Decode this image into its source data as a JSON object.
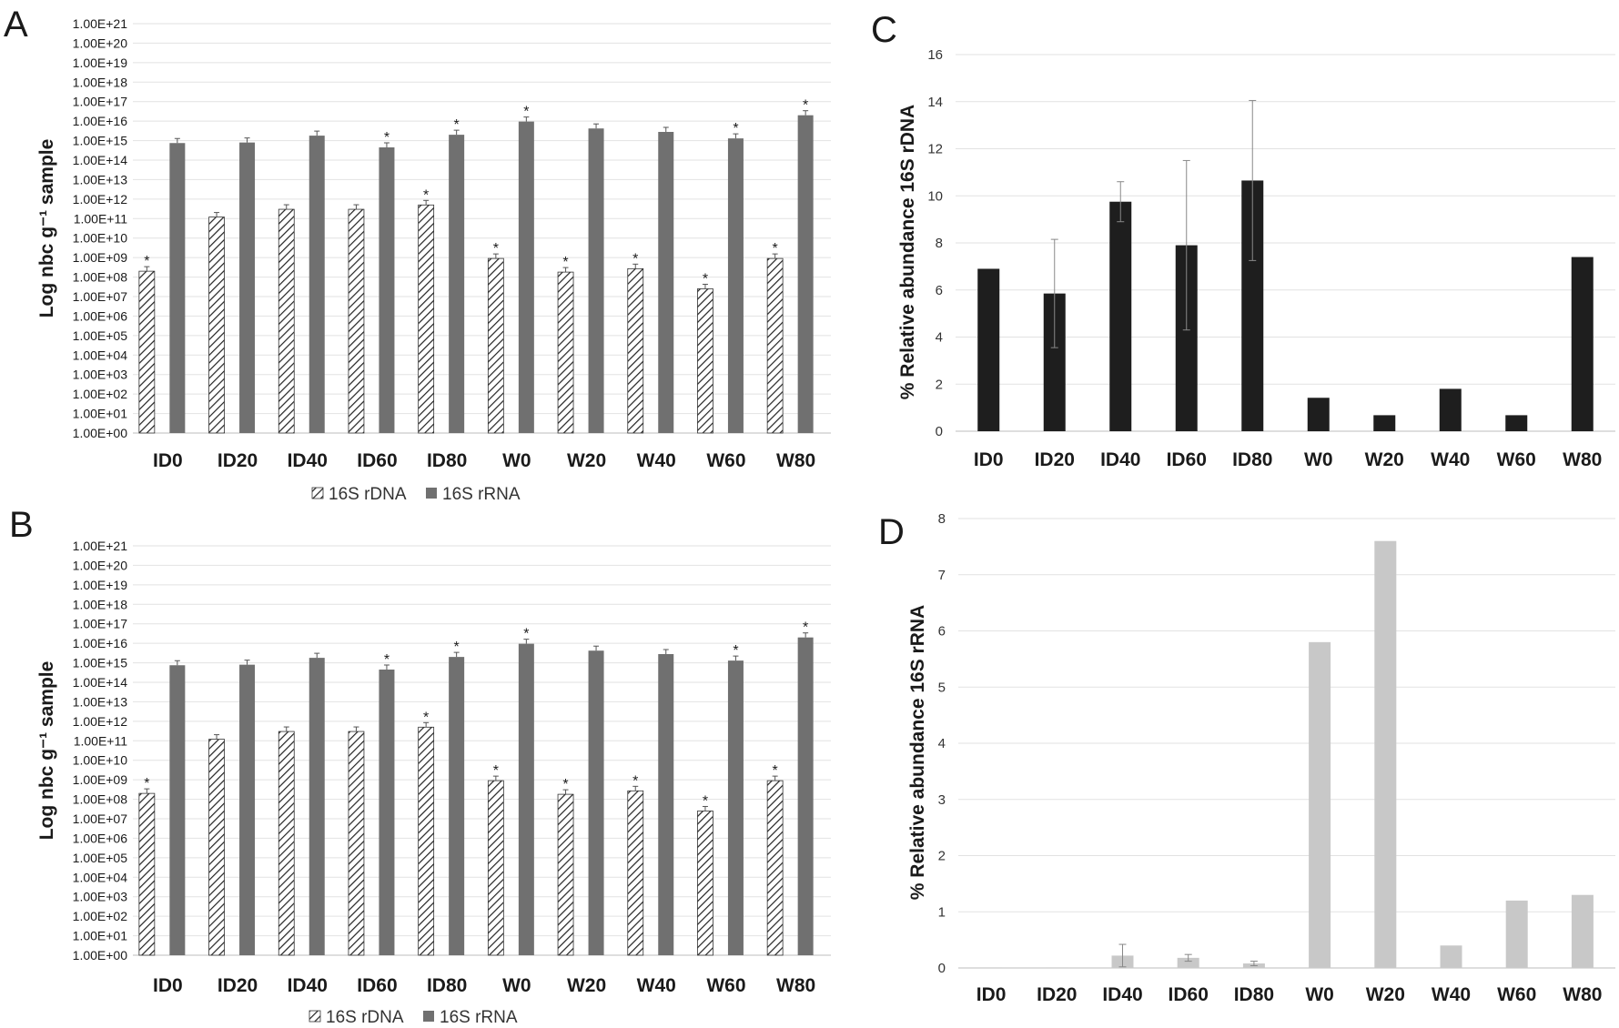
{
  "chart_data": [
    {
      "panel": "A",
      "type": "bar",
      "scale": "log",
      "ylabel": "Log nbc g⁻¹ sample",
      "ylim": [
        1,
        1e+21
      ],
      "ytick_labels": [
        "1.00E+00",
        "1.00E+01",
        "1.00E+02",
        "1.00E+03",
        "1.00E+04",
        "1.00E+05",
        "1.00E+06",
        "1.00E+07",
        "1.00E+08",
        "1.00E+09",
        "1.00E+10",
        "1.00E+11",
        "1.00E+12",
        "1.00E+13",
        "1.00E+14",
        "1.00E+15",
        "1.00E+16",
        "1.00E+17",
        "1.00E+18",
        "1.00E+19",
        "1.00E+20",
        "1.00E+21"
      ],
      "categories": [
        "ID0",
        "ID20",
        "ID40",
        "ID60",
        "ID80",
        "W0",
        "W20",
        "W40",
        "W60",
        "W80"
      ],
      "series": [
        {
          "name": "16S rDNA",
          "pattern": "hatched",
          "values": [
            200000000.0,
            120000000000.0,
            300000000000.0,
            300000000000.0,
            500000000000.0,
            900000000.0,
            180000000.0,
            270000000.0,
            25000000.0,
            900000000.0
          ],
          "star": [
            true,
            false,
            false,
            false,
            true,
            true,
            true,
            true,
            true,
            true
          ]
        },
        {
          "name": "16S rRNA",
          "pattern": "solid",
          "color": "#707070",
          "values": [
            750000000000000.0,
            800000000000000.0,
            1800000000000000.0,
            450000000000000.0,
            2000000000000000.0,
            9500000000000000.0,
            4200000000000000.0,
            2800000000000000.0,
            1300000000000000.0,
            2e+16
          ],
          "star": [
            false,
            false,
            false,
            true,
            true,
            true,
            false,
            false,
            true,
            true
          ]
        }
      ],
      "legend_position": "bottom"
    },
    {
      "panel": "B",
      "type": "bar",
      "scale": "log",
      "ylabel": "Log nbc g⁻¹ sample",
      "ylim": [
        1,
        1e+21
      ],
      "ytick_labels": [
        "1.00E+00",
        "1.00E+01",
        "1.00E+02",
        "1.00E+03",
        "1.00E+04",
        "1.00E+05",
        "1.00E+06",
        "1.00E+07",
        "1.00E+08",
        "1.00E+09",
        "1.00E+10",
        "1.00E+11",
        "1.00E+12",
        "1.00E+13",
        "1.00E+14",
        "1.00E+15",
        "1.00E+16",
        "1.00E+17",
        "1.00E+18",
        "1.00E+19",
        "1.00E+20",
        "1.00E+21"
      ],
      "categories": [
        "ID0",
        "ID20",
        "ID40",
        "ID60",
        "ID80",
        "W0",
        "W20",
        "W40",
        "W60",
        "W80"
      ],
      "series": [
        {
          "name": "16S rDNA",
          "pattern": "hatched",
          "values": [
            200000000.0,
            120000000000.0,
            300000000000.0,
            300000000000.0,
            500000000000.0,
            900000000.0,
            180000000.0,
            270000000.0,
            25000000.0,
            900000000.0
          ],
          "star": [
            true,
            false,
            false,
            false,
            true,
            true,
            true,
            true,
            true,
            true
          ]
        },
        {
          "name": "16S rRNA",
          "pattern": "solid",
          "color": "#707070",
          "values": [
            750000000000000.0,
            800000000000000.0,
            1800000000000000.0,
            450000000000000.0,
            2000000000000000.0,
            9500000000000000.0,
            4200000000000000.0,
            2800000000000000.0,
            1300000000000000.0,
            2e+16
          ],
          "star": [
            false,
            false,
            false,
            true,
            true,
            true,
            false,
            false,
            true,
            true
          ]
        }
      ],
      "legend_position": "bottom"
    },
    {
      "panel": "C",
      "type": "bar",
      "ylabel": "% Relative abundance  16S rDNA",
      "ylim": [
        0,
        16
      ],
      "yticks": [
        0,
        2,
        4,
        6,
        8,
        10,
        12,
        14,
        16
      ],
      "categories": [
        "ID0",
        "ID20",
        "ID40",
        "ID60",
        "ID80",
        "W0",
        "W20",
        "W40",
        "W60",
        "W80"
      ],
      "series": [
        {
          "name": "16S rDNA",
          "color": "#1e1e1e",
          "values": [
            6.9,
            5.85,
            9.75,
            7.9,
            10.65,
            1.42,
            0.68,
            1.8,
            0.68,
            7.4
          ],
          "errors": [
            0,
            2.3,
            0.85,
            3.6,
            3.4,
            0,
            0,
            0,
            0,
            0
          ]
        }
      ]
    },
    {
      "panel": "D",
      "type": "bar",
      "ylabel": "% Relative abundance  16S rRNA",
      "ylim": [
        0,
        8
      ],
      "yticks": [
        0,
        1,
        2,
        3,
        4,
        5,
        6,
        7,
        8
      ],
      "categories": [
        "ID0",
        "ID20",
        "ID40",
        "ID60",
        "ID80",
        "W0",
        "W20",
        "W40",
        "W60",
        "W80"
      ],
      "series": [
        {
          "name": "16S rRNA",
          "color": "#c8c8c8",
          "values": [
            0.01,
            0.01,
            0.22,
            0.18,
            0.08,
            5.8,
            7.6,
            0.4,
            1.2,
            1.3
          ],
          "errors": [
            0,
            0,
            0.2,
            0.06,
            0.04,
            0,
            0,
            0,
            0,
            0
          ]
        }
      ]
    }
  ]
}
